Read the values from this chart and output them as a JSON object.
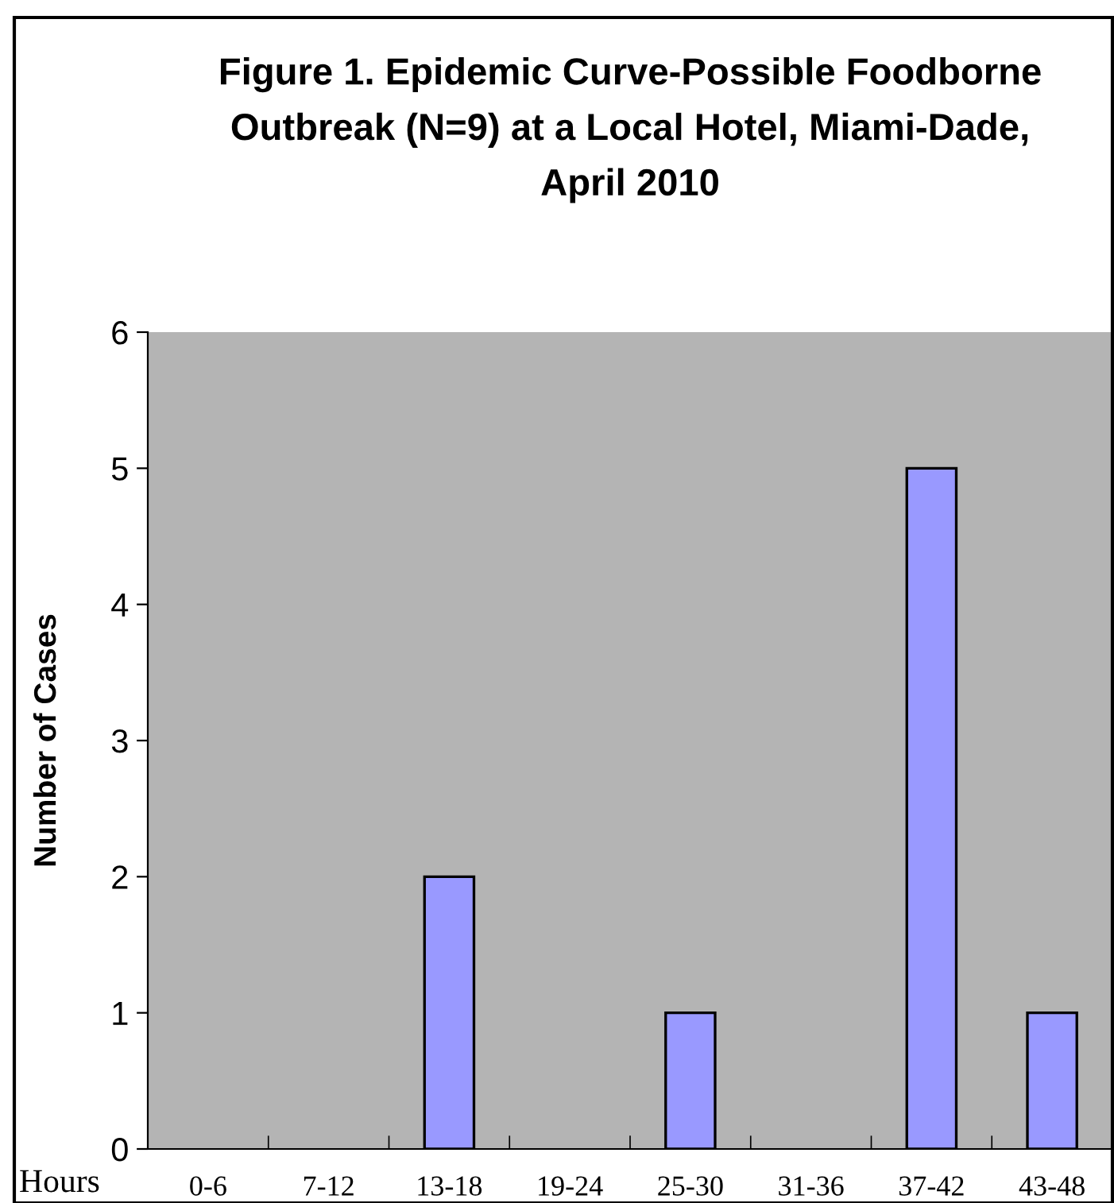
{
  "chart_data": {
    "type": "bar",
    "title": "Figure 1. Epidemic Curve-Possible Foodborne\nOutbreak (N=9) at a Local Hotel, Miami-Dade,\nApril 2010",
    "xlabel": "Hours",
    "ylabel": "Number of Cases",
    "categories": [
      "0-6",
      "7-12",
      "13-18",
      "19-24",
      "25-30",
      "31-36",
      "37-42",
      "43-48"
    ],
    "values": [
      0,
      0,
      2,
      0,
      1,
      0,
      5,
      1
    ],
    "color": "#9999ff",
    "ylim": [
      0,
      6
    ],
    "yticks": [
      0,
      1,
      2,
      3,
      4,
      5,
      6
    ]
  }
}
